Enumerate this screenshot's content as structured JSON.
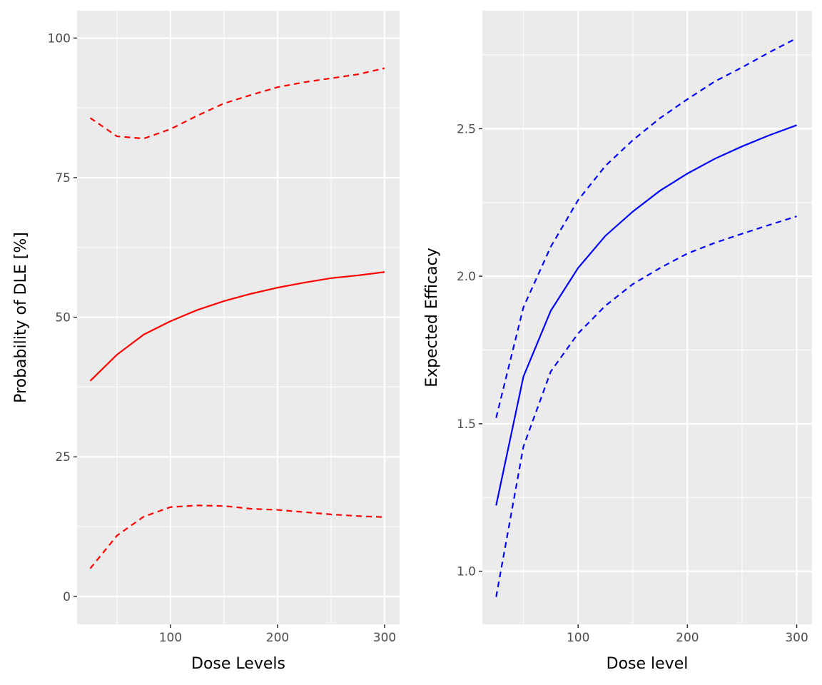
{
  "chart_data": [
    {
      "type": "line",
      "xlabel": "Dose Levels",
      "ylabel": "Probability of DLE [%]",
      "xlim": [
        12.7,
        314
      ],
      "ylim": [
        -5,
        104.9
      ],
      "xticks": [
        100,
        200,
        300
      ],
      "xminor": [
        50,
        150,
        250
      ],
      "yticks": [
        0,
        25,
        50,
        75,
        100
      ],
      "yminor": [
        12.5,
        37.5,
        62.5,
        87.5
      ],
      "grid": true,
      "color": "#ff0000",
      "x": [
        25,
        50,
        75,
        100,
        125,
        150,
        175,
        200,
        225,
        250,
        275,
        300
      ],
      "series": [
        {
          "style": "solid",
          "values": [
            38.6,
            43.3,
            46.9,
            49.3,
            51.3,
            52.9,
            54.2,
            55.3,
            56.2,
            57.0,
            57.5,
            58.1
          ]
        },
        {
          "style": "dashed",
          "values": [
            85.7,
            82.4,
            82.0,
            83.7,
            86.1,
            88.3,
            89.8,
            91.2,
            92.1,
            92.8,
            93.5,
            94.6
          ]
        },
        {
          "style": "dashed",
          "values": [
            5.0,
            10.9,
            14.3,
            16.0,
            16.3,
            16.2,
            15.7,
            15.5,
            15.1,
            14.7,
            14.4,
            14.2
          ]
        }
      ]
    },
    {
      "type": "line",
      "xlabel": "Dose level",
      "ylabel": "Expected Efficacy",
      "xlim": [
        12.4,
        314
      ],
      "ylim": [
        0.82,
        2.9
      ],
      "xticks": [
        100,
        200,
        300
      ],
      "xminor": [
        50,
        150,
        250
      ],
      "yticks": [
        1.0,
        1.5,
        2.0,
        2.5
      ],
      "yminor": [
        1.25,
        1.75,
        2.25,
        2.75
      ],
      "grid": true,
      "color": "#0000ff",
      "x": [
        25,
        50,
        75,
        100,
        125,
        150,
        175,
        200,
        225,
        250,
        275,
        300
      ],
      "series": [
        {
          "style": "solid",
          "values": [
            1.223,
            1.66,
            1.883,
            2.028,
            2.137,
            2.219,
            2.29,
            2.348,
            2.398,
            2.44,
            2.478,
            2.512
          ]
        },
        {
          "style": "dashed",
          "values": [
            1.52,
            1.895,
            2.1,
            2.258,
            2.374,
            2.461,
            2.536,
            2.6,
            2.66,
            2.708,
            2.759,
            2.807
          ]
        },
        {
          "style": "dashed",
          "values": [
            0.913,
            1.423,
            1.677,
            1.806,
            1.9,
            1.973,
            2.028,
            2.077,
            2.113,
            2.144,
            2.174,
            2.203
          ]
        }
      ]
    }
  ]
}
